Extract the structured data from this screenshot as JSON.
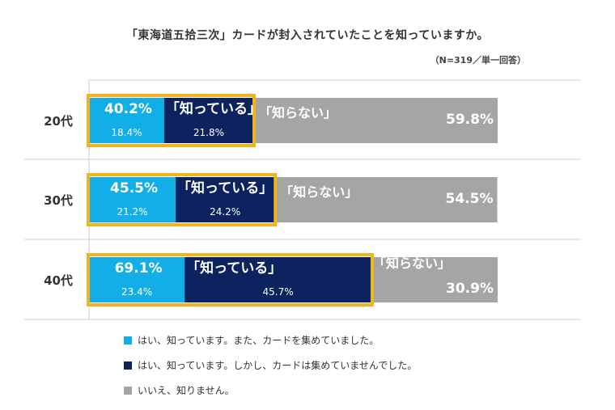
{
  "title": "「東海道五拾三次」カードが封入されていたことを知っていますか。",
  "note": "（N=319／単一回答）",
  "colors": {
    "collected": "#11aee8",
    "not_collected": "#0d2360",
    "dont_know": "#a5a5a5",
    "highlight": "#f0b41e"
  },
  "chart_data": {
    "type": "bar",
    "stacked": true,
    "orientation": "horizontal",
    "categories": [
      "20代",
      "30代",
      "40代"
    ],
    "series": [
      {
        "name": "はい、知っています。また、カードを集めていました。",
        "values": [
          18.4,
          21.2,
          23.4
        ],
        "value_labels": [
          "18.4%",
          "21.2%",
          "23.4%"
        ]
      },
      {
        "name": "はい、知っています。しかし、カードは集めていませんでした。",
        "values": [
          21.8,
          24.2,
          45.7
        ],
        "value_labels": [
          "21.8%",
          "24.2%",
          "45.7%"
        ]
      },
      {
        "name": "いいえ、知りません。",
        "values": [
          59.8,
          54.5,
          30.9
        ],
        "value_labels": [
          "59.8%",
          "54.5%",
          "30.9%"
        ]
      }
    ],
    "know_totals": [
      "40.2%",
      "45.5%",
      "69.1%"
    ],
    "know_label": "「知っている」",
    "dont_know_label": "「知らない」",
    "xlim": [
      0,
      100
    ],
    "legend_position": "bottom"
  }
}
